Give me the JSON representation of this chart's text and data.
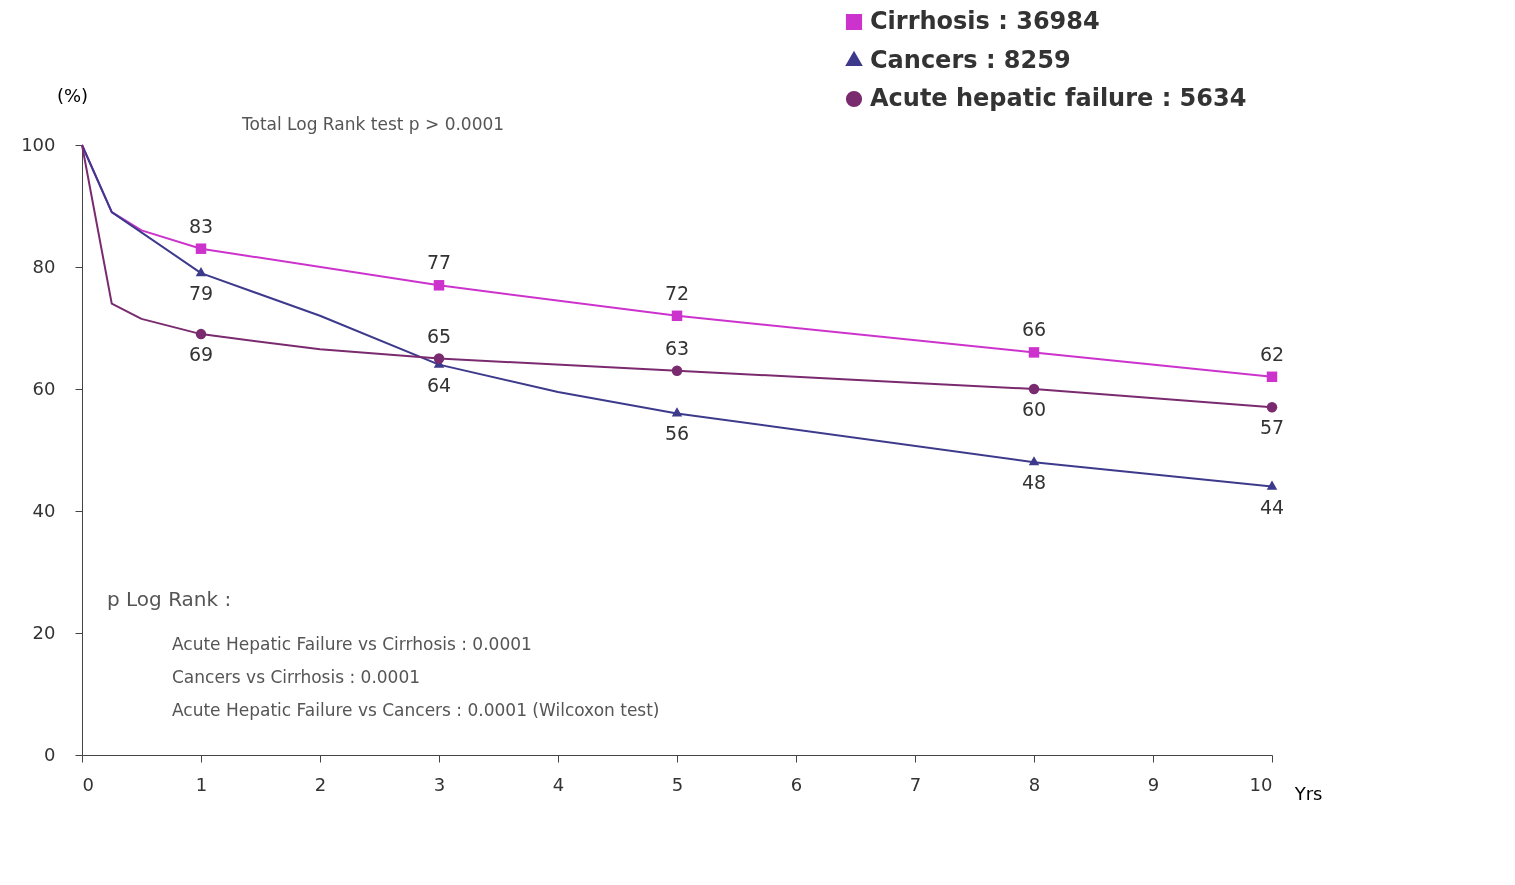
{
  "chart_data": {
    "type": "line",
    "ylabel": "(%)",
    "xlabel": "Yrs",
    "xlim": [
      0,
      10
    ],
    "xticks": [
      0,
      1,
      2,
      3,
      4,
      5,
      6,
      7,
      8,
      9,
      10
    ],
    "ylim": [
      0,
      100
    ],
    "yticks": [
      0,
      20,
      40,
      60,
      80,
      100
    ],
    "grid": false,
    "legend": "top right",
    "annotations": [
      "Total Log Rank test p > 0.0001",
      "p Log Rank :",
      "Acute Hepatic Failure vs Cirrhosis : 0.0001",
      "Cancers vs Cirrhosis : 0.0001",
      "Acute Hepatic Failure vs Cancers : 0.0001 (Wilcoxon test)"
    ],
    "series": [
      {
        "name": "Cirrhosis : 36984",
        "color": "#cc33cc",
        "marker": "square",
        "x": [
          0,
          0.25,
          0.5,
          1,
          3,
          5,
          8,
          10
        ],
        "values": [
          100,
          89,
          86,
          83,
          77,
          72,
          66,
          62
        ],
        "value_labels": [
          null,
          null,
          null,
          "83",
          "77",
          "72",
          "66",
          "62"
        ]
      },
      {
        "name": "Cancers : 8259",
        "color": "#3d3a8c",
        "marker": "triangle",
        "x": [
          0,
          0.25,
          1,
          2,
          3,
          4,
          5,
          8,
          10
        ],
        "values": [
          100,
          89,
          79,
          72,
          64,
          59.5,
          56,
          48,
          44
        ],
        "value_labels": [
          null,
          null,
          "79",
          null,
          "64",
          null,
          "56",
          "48",
          "44"
        ]
      },
      {
        "name": "Acute hepatic failure : 5634",
        "color": "#7a2a6e",
        "marker": "circle",
        "x": [
          0,
          0.25,
          0.5,
          1,
          2,
          3,
          5,
          7,
          8,
          10
        ],
        "values": [
          100,
          74,
          71.5,
          69,
          66.5,
          65,
          63,
          61,
          60,
          57
        ],
        "value_labels": [
          null,
          null,
          null,
          "69",
          null,
          "65",
          "63",
          null,
          "60",
          "57"
        ]
      }
    ]
  }
}
